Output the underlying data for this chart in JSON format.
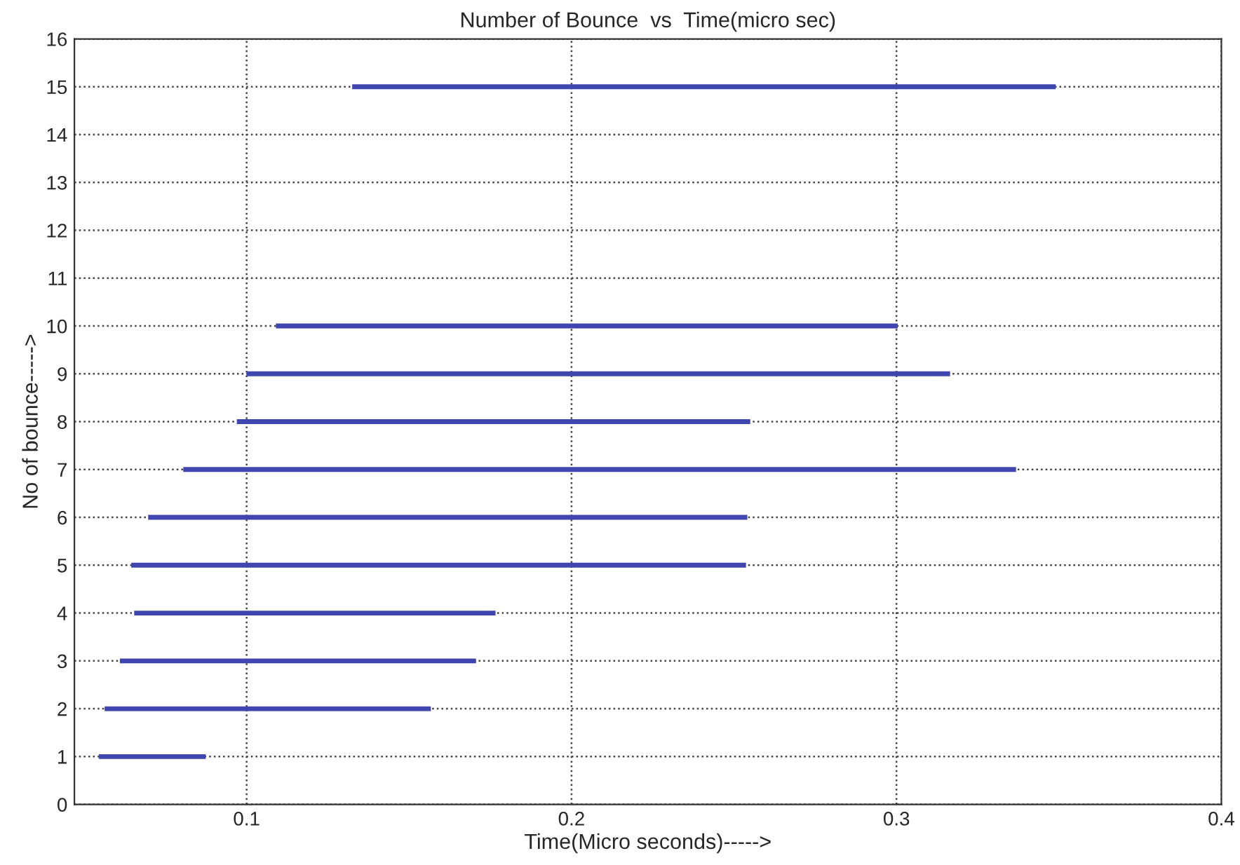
{
  "chart_data": {
    "type": "line",
    "title": "Number of Bounce  vs  Time(micro sec)",
    "xlabel": "Time(Micro seconds)----->",
    "ylabel": "No of bounce----->",
    "xlim": [
      0.047,
      0.4
    ],
    "xticks": [
      0.1,
      0.2,
      0.3,
      0.4
    ],
    "ylim": [
      0,
      16
    ],
    "yticks": [
      0,
      1,
      2,
      3,
      4,
      5,
      6,
      7,
      8,
      9,
      10,
      11,
      12,
      13,
      14,
      15,
      16
    ],
    "grid": true,
    "line_style": "solid",
    "marker": "none",
    "series": [
      {
        "color": "#3f46b0",
        "x": [
          0.0545,
          0.0874
        ],
        "values": [
          1,
          1
        ]
      },
      {
        "color": "#3f46b0",
        "x": [
          0.0563,
          0.1567
        ],
        "values": [
          2,
          2
        ]
      },
      {
        "color": "#3f46b0",
        "x": [
          0.061,
          0.1706
        ],
        "values": [
          3,
          3
        ]
      },
      {
        "color": "#3f46b0",
        "x": [
          0.0654,
          0.1766
        ],
        "values": [
          4,
          4
        ]
      },
      {
        "color": "#3f46b0",
        "x": [
          0.0645,
          0.2537
        ],
        "values": [
          5,
          5
        ]
      },
      {
        "color": "#3f46b0",
        "x": [
          0.0697,
          0.2541
        ],
        "values": [
          6,
          6
        ]
      },
      {
        "color": "#3f46b0",
        "x": [
          0.0805,
          0.3368
        ],
        "values": [
          7,
          7
        ]
      },
      {
        "color": "#3f46b0",
        "x": [
          0.097,
          0.255
        ],
        "values": [
          8,
          8
        ]
      },
      {
        "color": "#3f46b0",
        "x": [
          0.1,
          0.3165
        ],
        "values": [
          9,
          9
        ]
      },
      {
        "color": "#3f46b0",
        "x": [
          0.109,
          0.3004
        ],
        "values": [
          10,
          10
        ]
      },
      {
        "color": "#3f46b0",
        "x": [
          0.1325,
          0.349
        ],
        "values": [
          15,
          15
        ]
      }
    ]
  }
}
